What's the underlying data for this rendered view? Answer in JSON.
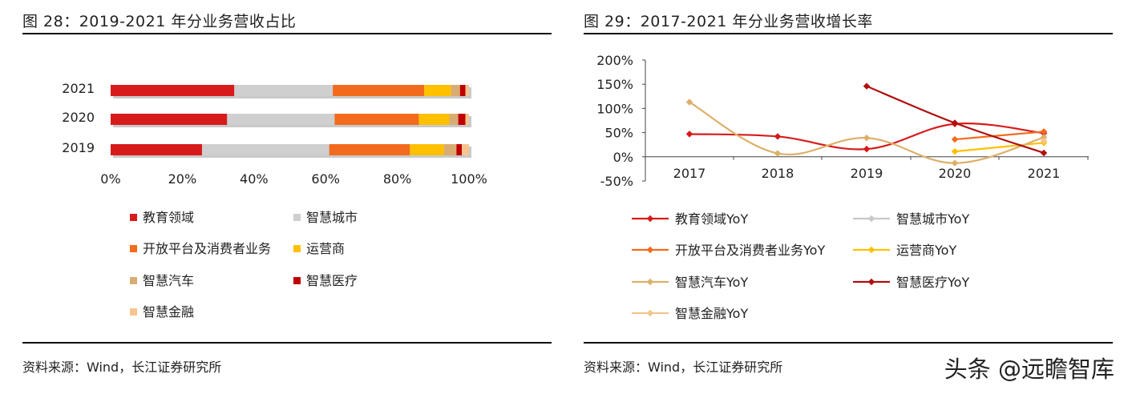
{
  "left": {
    "title": "图 28：2019-2021 年分业务营收占比",
    "source": "资料来源：Wind，长江证券研究所"
  },
  "right": {
    "title": "图 29：2017-2021 年分业务营收增长率",
    "source": "资料来源：Wind，长江证券研究所"
  },
  "watermark": "头条 @远瞻智库",
  "chart_data": [
    {
      "type": "bar",
      "orientation": "horizontal",
      "stacked": true,
      "title": "",
      "categories": [
        "2021",
        "2020",
        "2019"
      ],
      "xticks": [
        "0%",
        "20%",
        "40%",
        "60%",
        "80%",
        "100%"
      ],
      "xlim": [
        0,
        100
      ],
      "legend_position": "bottom",
      "series": [
        {
          "name": "教育领域",
          "color": "#d71b1b",
          "values": [
            34.5,
            32.5,
            25.5
          ]
        },
        {
          "name": "智慧城市",
          "color": "#cfcfcf",
          "values": [
            27.5,
            30.0,
            35.5
          ]
        },
        {
          "name": "开放平台及消费者业务",
          "color": "#f26b1d",
          "values": [
            25.5,
            23.5,
            22.5
          ]
        },
        {
          "name": "运营商",
          "color": "#ffc000",
          "values": [
            7.5,
            8.5,
            9.5
          ]
        },
        {
          "name": "智慧汽车",
          "color": "#d9ac72",
          "values": [
            2.5,
            2.5,
            3.5
          ]
        },
        {
          "name": "智慧医疗",
          "color": "#c00000",
          "values": [
            1.5,
            2.0,
            1.5
          ]
        },
        {
          "name": "智慧金融",
          "color": "#f6c58f",
          "values": [
            1.0,
            1.0,
            2.0
          ]
        }
      ]
    },
    {
      "type": "line",
      "title": "",
      "x": [
        "2017",
        "2018",
        "2019",
        "2020",
        "2021"
      ],
      "yticks": [
        "200%",
        "150%",
        "100%",
        "50%",
        "0%",
        "-50%"
      ],
      "ylim": [
        -50,
        200
      ],
      "legend_position": "bottom",
      "series": [
        {
          "name": "教育领域YoY",
          "color": "#d71b1b",
          "values": [
            47,
            42,
            16,
            68,
            49
          ]
        },
        {
          "name": "智慧城市YoY",
          "color": "#c8c8c8",
          "values": [
            null,
            null,
            null,
            null,
            null
          ]
        },
        {
          "name": "开放平台及消费者业务YoY",
          "color": "#f26b1d",
          "values": [
            null,
            null,
            null,
            36,
            52
          ]
        },
        {
          "name": "运营商YoY",
          "color": "#ffc000",
          "values": [
            null,
            null,
            null,
            11,
            29
          ]
        },
        {
          "name": "智慧汽车YoY",
          "color": "#ddb06a",
          "values": [
            113,
            7,
            39,
            -13,
            40
          ]
        },
        {
          "name": "智慧医疗YoY",
          "color": "#b01010",
          "values": [
            null,
            null,
            146,
            70,
            8
          ]
        },
        {
          "name": "智慧金融YoY",
          "color": "#f3c58c",
          "values": [
            null,
            null,
            null,
            null,
            33
          ]
        }
      ]
    }
  ]
}
